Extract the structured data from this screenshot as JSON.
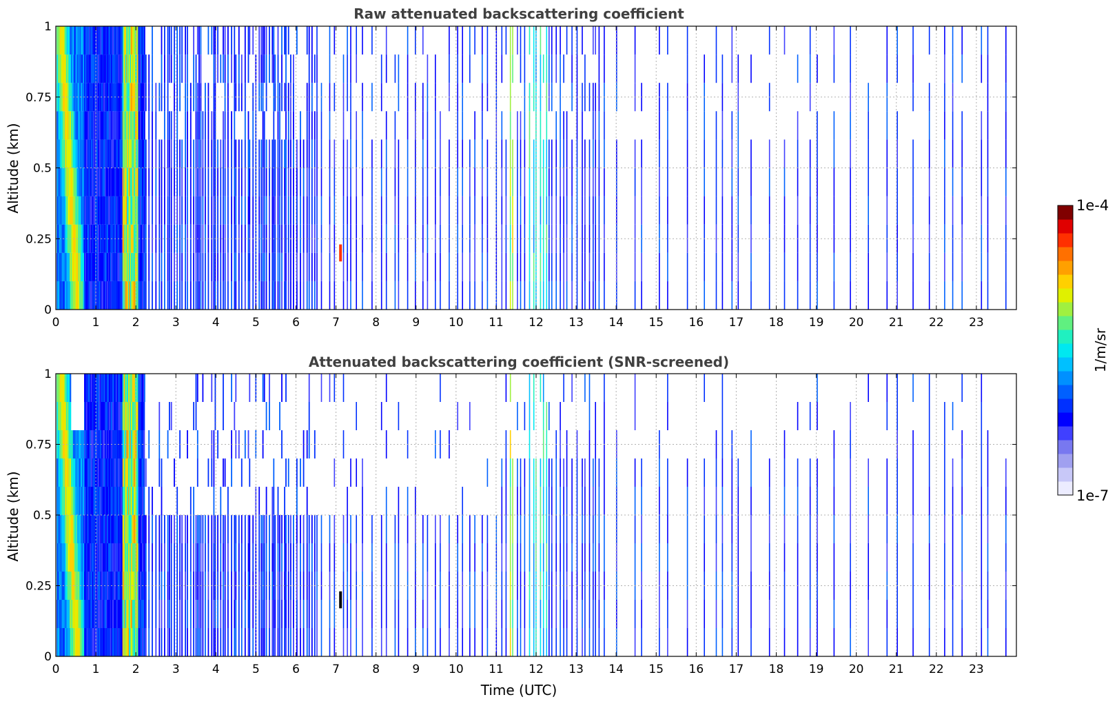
{
  "chart_data": [
    {
      "type": "heatmap",
      "title": "Raw attenuated backscattering coefficient",
      "xlabel": "",
      "ylabel": "Altitude (km)",
      "xlim": [
        0,
        24
      ],
      "ylim": [
        0,
        1
      ],
      "x_ticks": [
        "0",
        "1",
        "2",
        "3",
        "4",
        "5",
        "6",
        "7",
        "8",
        "9",
        "10",
        "11",
        "12",
        "13",
        "14",
        "15",
        "16",
        "17",
        "18",
        "19",
        "20",
        "21",
        "22",
        "23"
      ],
      "y_ticks": [
        "0",
        "0.25",
        "0.5",
        "0.75",
        "1"
      ],
      "grid": true,
      "color_scale": "log",
      "notable_features": [
        {
          "x_range": [
            0.0,
            0.7
          ],
          "description": "dense high-backscatter layer, green/yellow near surface"
        },
        {
          "x_range": [
            1.6,
            2.1
          ],
          "description": "yellow-orange columns across full altitude"
        },
        {
          "x_range": [
            7.1,
            7.15
          ],
          "y": 0.2,
          "description": "red spot"
        },
        {
          "x_range": [
            11.2,
            11.5
          ],
          "description": "yellow/green columns"
        }
      ]
    },
    {
      "type": "heatmap",
      "title": "Attenuated backscattering coefficient (SNR-screened)",
      "xlabel": "Time (UTC)",
      "ylabel": "Altitude (km)",
      "xlim": [
        0,
        24
      ],
      "ylim": [
        0,
        1
      ],
      "x_ticks": [
        "0",
        "1",
        "2",
        "3",
        "4",
        "5",
        "6",
        "7",
        "8",
        "9",
        "10",
        "11",
        "12",
        "13",
        "14",
        "15",
        "16",
        "17",
        "18",
        "19",
        "20",
        "21",
        "22",
        "23"
      ],
      "y_ticks": [
        "0",
        "0.25",
        "0.5",
        "0.75",
        "1"
      ],
      "grid": true,
      "color_scale": "log",
      "notable_features": [
        {
          "x_range": [
            0.0,
            0.7
          ],
          "description": "high-backscatter layer, green/yellow near surface"
        },
        {
          "x_range": [
            1.6,
            2.1
          ],
          "description": "yellow-orange columns"
        },
        {
          "x_range": [
            7.1,
            7.15
          ],
          "y": 0.2,
          "description": "dark spot"
        },
        {
          "x_range": [
            11.3,
            11.5
          ],
          "description": "yellow/green columns upper levels"
        }
      ]
    }
  ],
  "colorbar": {
    "label": "1/m/sr",
    "max_label": "1e-4",
    "min_label": "1e-7",
    "colors": [
      "#ececff",
      "#c8c8f8",
      "#a0a0f0",
      "#7878f0",
      "#4040ff",
      "#0000ff",
      "#0030ff",
      "#0060ff",
      "#0090ff",
      "#00c0ff",
      "#00e8f0",
      "#20f0c0",
      "#60f080",
      "#a0f040",
      "#e0f000",
      "#ffd000",
      "#ffa000",
      "#ff7000",
      "#ff3000",
      "#e00000",
      "#800000"
    ]
  }
}
